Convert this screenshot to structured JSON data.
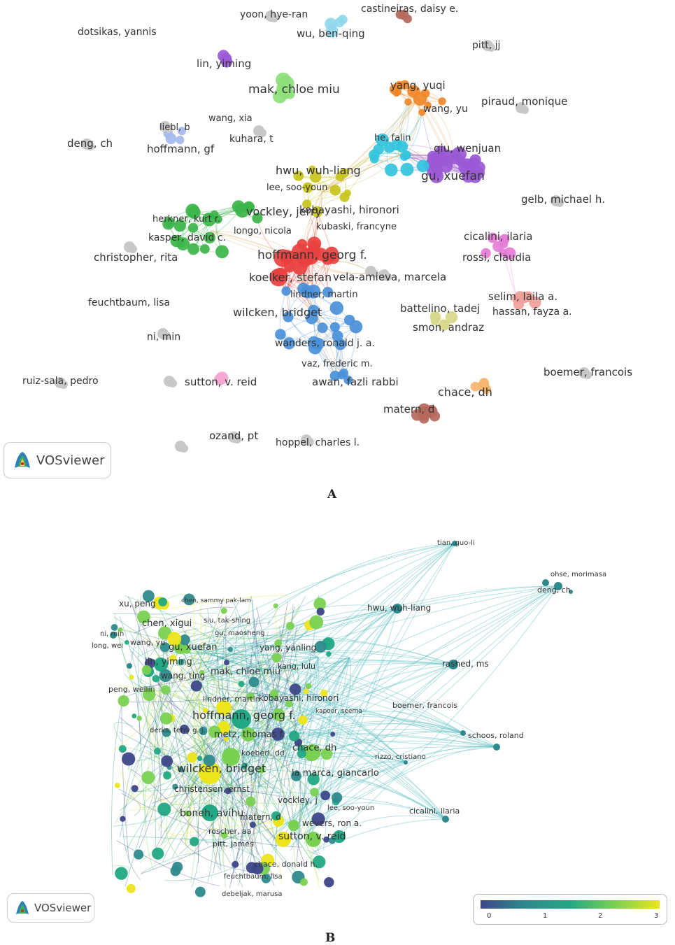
{
  "panel_a": {
    "caption": "A",
    "brand": "VOSviewer",
    "labels": [
      "yoon, hye-ran",
      "castineiras, daisy e.",
      "dotsikas, yannis",
      "wu, ben-qing",
      "pitt, jj",
      "lin, yiming",
      "mak, chloe miu",
      "yang, yuqi",
      "piraud, monique",
      "wang, xia",
      "wang, yu",
      "liebl, b",
      "deng, ch",
      "kuhara, t",
      "hoffmann, gf",
      "he, falin",
      "qiu, wenjuan",
      "hwu, wuh-liang",
      "gu, xuefan",
      "lee, soo-youn",
      "gelb, michael h.",
      "kobayashi, hironori",
      "vockley, jerry",
      "herkner, kurt r.",
      "kubaski, francyne",
      "longo, nicola",
      "kasper, david c.",
      "cicalini, ilaria",
      "hoffmann, georg f.",
      "christopher, rita",
      "rossi, claudia",
      "koelker, stefan",
      "vela-amieva, marcela",
      "selim, laila a.",
      "lindner, martin",
      "feuchtbaum, lisa",
      "hassan, fayza a.",
      "battelino, tadej",
      "wilcken, bridget",
      "smon, andraz",
      "ni, min",
      "wanders, ronald j. a.",
      "vaz, frederic m.",
      "boemer, francois",
      "chace, dh",
      "ruiz-sala, pedro",
      "awan, fazli rabbi",
      "sutton, v. reid",
      "matern, d",
      "ozand, pt",
      "hoppel, charles l."
    ],
    "colors": {
      "red": "#e8413f",
      "green": "#3cb54a",
      "blue": "#4a90d9",
      "yellow": "#c8c41c",
      "purple": "#9b59d6",
      "cyan": "#32c4dc",
      "orange": "#f0882a",
      "brown": "#b5685c",
      "pink": "#e67dd6",
      "salmon": "#f0a09a",
      "lightgreen": "#8ee07a",
      "lavender": "#a4b8ee",
      "khaki": "#d8d78a",
      "peach": "#f6b46c",
      "babyblue": "#8ed8ec",
      "lightpink": "#f3a7cf",
      "gray": "#c8c8c8"
    }
  },
  "panel_b": {
    "caption": "B",
    "brand": "VOSviewer",
    "labels": [
      "tian, guo-li",
      "ohse, morimasa",
      "deng, ch",
      "xu, peng",
      "chen, sammy pak-lam",
      "hwu, wuh-liang",
      "chen, xigui",
      "siu, tak-shing",
      "ni, min",
      "gu, maosheng",
      "wang, yu",
      "long, wei",
      "yang, yanling",
      "gu, xuefan",
      "lin, yiming",
      "rashed, ms",
      "mak, chloe miu",
      "kang, lulu",
      "wang, ting",
      "peng, weilin",
      "kobayashi, hironori",
      "lindner, martin",
      "boemer, francois",
      "kapoor, seema",
      "hoffmann, georg f.",
      "derks, terry g. j.",
      "schoos, roland",
      "metz, thomas f.",
      "chace, dh",
      "koeberl, dd",
      "rizzo, cristiano",
      "wilcken, bridget",
      "la marca, giancarlo",
      "christensen, ernst",
      "vockley, j",
      "lee, soo-youn",
      "cicalini, ilaria",
      "boneh, avihu",
      "matern, d",
      "wevers, ron a.",
      "roscher, aa",
      "sutton, v. reid",
      "pitt, james",
      "chace, donald h.",
      "feuchtbaum, lisa",
      "debeljak, marusa"
    ],
    "scale_ticks": [
      "0",
      "1",
      "2",
      "3"
    ],
    "scale_colors": [
      "#3d4689",
      "#2e8a8c",
      "#22a884",
      "#7ad151",
      "#ece51b"
    ]
  }
}
